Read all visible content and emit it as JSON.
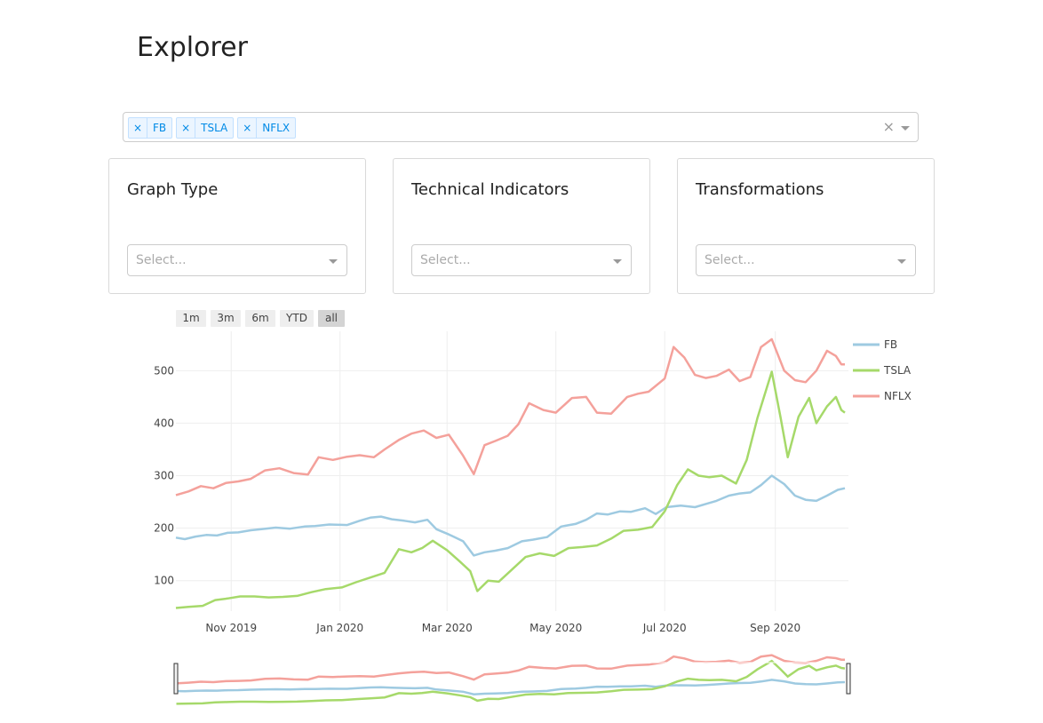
{
  "page": {
    "title": "Explorer"
  },
  "ticker_select": {
    "tags": [
      "FB",
      "TSLA",
      "NFLX"
    ],
    "remove_symbol": "×",
    "clear_symbol": "×"
  },
  "cards": [
    {
      "title": "Graph Type",
      "placeholder": "Select..."
    },
    {
      "title": "Technical Indicators",
      "placeholder": "Select..."
    },
    {
      "title": "Transformations",
      "placeholder": "Select..."
    }
  ],
  "range_selector": {
    "buttons": [
      "1m",
      "3m",
      "6m",
      "YTD",
      "all"
    ],
    "active": "all"
  },
  "chart_data": {
    "type": "line",
    "x_range": [
      "2019-10-01",
      "2020-10-12"
    ],
    "ylim": [
      42,
      575
    ],
    "y_ticks": [
      100,
      200,
      300,
      400,
      500
    ],
    "x_ticks": [
      {
        "date": "2019-11-01",
        "label": "Nov 2019"
      },
      {
        "date": "2020-01-01",
        "label": "Jan 2020"
      },
      {
        "date": "2020-03-01",
        "label": "Mar 2020"
      },
      {
        "date": "2020-05-01",
        "label": "May 2020"
      },
      {
        "date": "2020-07-01",
        "label": "Jul 2020"
      },
      {
        "date": "2020-09-01",
        "label": "Sep 2020"
      }
    ],
    "grid": true,
    "legend_position": "right",
    "range_slider": true,
    "series": [
      {
        "name": "FB",
        "color": "#9ecae1",
        "points": [
          [
            "2019-10-01",
            182
          ],
          [
            "2019-10-06",
            179
          ],
          [
            "2019-10-12",
            184
          ],
          [
            "2019-10-18",
            187
          ],
          [
            "2019-10-24",
            186
          ],
          [
            "2019-10-30",
            191
          ],
          [
            "2019-11-05",
            192
          ],
          [
            "2019-11-12",
            196
          ],
          [
            "2019-11-18",
            198
          ],
          [
            "2019-11-26",
            201
          ],
          [
            "2019-12-04",
            199
          ],
          [
            "2019-12-12",
            203
          ],
          [
            "2019-12-18",
            204
          ],
          [
            "2019-12-26",
            207
          ],
          [
            "2020-01-05",
            206
          ],
          [
            "2020-01-12",
            214
          ],
          [
            "2020-01-18",
            220
          ],
          [
            "2020-01-24",
            222
          ],
          [
            "2020-01-30",
            217
          ],
          [
            "2020-02-06",
            214
          ],
          [
            "2020-02-12",
            211
          ],
          [
            "2020-02-19",
            216
          ],
          [
            "2020-02-24",
            198
          ],
          [
            "2020-03-02",
            188
          ],
          [
            "2020-03-10",
            175
          ],
          [
            "2020-03-16",
            148
          ],
          [
            "2020-03-22",
            154
          ],
          [
            "2020-03-28",
            157
          ],
          [
            "2020-04-04",
            162
          ],
          [
            "2020-04-12",
            175
          ],
          [
            "2020-04-18",
            178
          ],
          [
            "2020-04-26",
            183
          ],
          [
            "2020-05-04",
            203
          ],
          [
            "2020-05-12",
            208
          ],
          [
            "2020-05-18",
            216
          ],
          [
            "2020-05-24",
            228
          ],
          [
            "2020-05-30",
            226
          ],
          [
            "2020-06-06",
            232
          ],
          [
            "2020-06-12",
            231
          ],
          [
            "2020-06-20",
            238
          ],
          [
            "2020-06-26",
            227
          ],
          [
            "2020-07-02",
            240
          ],
          [
            "2020-07-10",
            243
          ],
          [
            "2020-07-18",
            240
          ],
          [
            "2020-07-24",
            246
          ],
          [
            "2020-07-30",
            252
          ],
          [
            "2020-08-06",
            262
          ],
          [
            "2020-08-12",
            266
          ],
          [
            "2020-08-18",
            268
          ],
          [
            "2020-08-24",
            282
          ],
          [
            "2020-08-30",
            300
          ],
          [
            "2020-09-06",
            284
          ],
          [
            "2020-09-12",
            262
          ],
          [
            "2020-09-18",
            254
          ],
          [
            "2020-09-24",
            252
          ],
          [
            "2020-09-30",
            262
          ],
          [
            "2020-10-06",
            273
          ],
          [
            "2020-10-10",
            276
          ]
        ]
      },
      {
        "name": "TSLA",
        "color": "#a6d96a",
        "points": [
          [
            "2019-10-01",
            48
          ],
          [
            "2019-10-08",
            50
          ],
          [
            "2019-10-16",
            52
          ],
          [
            "2019-10-23",
            63
          ],
          [
            "2019-10-30",
            66
          ],
          [
            "2019-11-06",
            70
          ],
          [
            "2019-11-14",
            70
          ],
          [
            "2019-11-22",
            68
          ],
          [
            "2019-11-30",
            69
          ],
          [
            "2019-12-08",
            71
          ],
          [
            "2019-12-16",
            78
          ],
          [
            "2019-12-24",
            84
          ],
          [
            "2020-01-02",
            87
          ],
          [
            "2020-01-10",
            97
          ],
          [
            "2020-01-18",
            106
          ],
          [
            "2020-01-26",
            115
          ],
          [
            "2020-02-03",
            160
          ],
          [
            "2020-02-10",
            154
          ],
          [
            "2020-02-16",
            162
          ],
          [
            "2020-02-22",
            176
          ],
          [
            "2020-03-01",
            158
          ],
          [
            "2020-03-08",
            137
          ],
          [
            "2020-03-14",
            118
          ],
          [
            "2020-03-18",
            80
          ],
          [
            "2020-03-24",
            100
          ],
          [
            "2020-03-30",
            98
          ],
          [
            "2020-04-06",
            120
          ],
          [
            "2020-04-14",
            145
          ],
          [
            "2020-04-22",
            152
          ],
          [
            "2020-04-30",
            147
          ],
          [
            "2020-05-08",
            162
          ],
          [
            "2020-05-16",
            164
          ],
          [
            "2020-05-24",
            167
          ],
          [
            "2020-06-01",
            180
          ],
          [
            "2020-06-08",
            195
          ],
          [
            "2020-06-16",
            197
          ],
          [
            "2020-06-24",
            202
          ],
          [
            "2020-07-01",
            232
          ],
          [
            "2020-07-08",
            282
          ],
          [
            "2020-07-14",
            312
          ],
          [
            "2020-07-20",
            300
          ],
          [
            "2020-07-26",
            297
          ],
          [
            "2020-08-02",
            300
          ],
          [
            "2020-08-10",
            285
          ],
          [
            "2020-08-16",
            330
          ],
          [
            "2020-08-22",
            410
          ],
          [
            "2020-08-30",
            498
          ],
          [
            "2020-09-04",
            410
          ],
          [
            "2020-09-08",
            335
          ],
          [
            "2020-09-14",
            412
          ],
          [
            "2020-09-20",
            448
          ],
          [
            "2020-09-24",
            400
          ],
          [
            "2020-09-30",
            432
          ],
          [
            "2020-10-05",
            450
          ],
          [
            "2020-10-08",
            425
          ],
          [
            "2020-10-10",
            420
          ]
        ]
      },
      {
        "name": "NFLX",
        "color": "#f4a19b",
        "points": [
          [
            "2019-10-01",
            263
          ],
          [
            "2019-10-08",
            270
          ],
          [
            "2019-10-15",
            280
          ],
          [
            "2019-10-22",
            276
          ],
          [
            "2019-10-29",
            286
          ],
          [
            "2019-11-05",
            289
          ],
          [
            "2019-11-12",
            294
          ],
          [
            "2019-11-20",
            310
          ],
          [
            "2019-11-28",
            314
          ],
          [
            "2019-12-06",
            305
          ],
          [
            "2019-12-14",
            302
          ],
          [
            "2019-12-20",
            335
          ],
          [
            "2019-12-28",
            330
          ],
          [
            "2020-01-05",
            336
          ],
          [
            "2020-01-12",
            339
          ],
          [
            "2020-01-20",
            335
          ],
          [
            "2020-01-26",
            350
          ],
          [
            "2020-02-03",
            368
          ],
          [
            "2020-02-10",
            380
          ],
          [
            "2020-02-17",
            386
          ],
          [
            "2020-02-24",
            372
          ],
          [
            "2020-03-02",
            378
          ],
          [
            "2020-03-10",
            338
          ],
          [
            "2020-03-16",
            303
          ],
          [
            "2020-03-22",
            358
          ],
          [
            "2020-03-28",
            366
          ],
          [
            "2020-04-04",
            376
          ],
          [
            "2020-04-10",
            398
          ],
          [
            "2020-04-16",
            438
          ],
          [
            "2020-04-24",
            425
          ],
          [
            "2020-05-01",
            420
          ],
          [
            "2020-05-10",
            448
          ],
          [
            "2020-05-18",
            450
          ],
          [
            "2020-05-24",
            420
          ],
          [
            "2020-06-01",
            418
          ],
          [
            "2020-06-10",
            450
          ],
          [
            "2020-06-16",
            456
          ],
          [
            "2020-06-22",
            460
          ],
          [
            "2020-07-01",
            485
          ],
          [
            "2020-07-06",
            545
          ],
          [
            "2020-07-12",
            525
          ],
          [
            "2020-07-18",
            492
          ],
          [
            "2020-07-24",
            486
          ],
          [
            "2020-07-30",
            490
          ],
          [
            "2020-08-06",
            502
          ],
          [
            "2020-08-12",
            480
          ],
          [
            "2020-08-18",
            488
          ],
          [
            "2020-08-24",
            545
          ],
          [
            "2020-08-30",
            560
          ],
          [
            "2020-09-06",
            500
          ],
          [
            "2020-09-12",
            482
          ],
          [
            "2020-09-18",
            478
          ],
          [
            "2020-09-24",
            500
          ],
          [
            "2020-09-30",
            538
          ],
          [
            "2020-10-05",
            528
          ],
          [
            "2020-10-08",
            512
          ],
          [
            "2020-10-10",
            512
          ]
        ]
      }
    ]
  }
}
